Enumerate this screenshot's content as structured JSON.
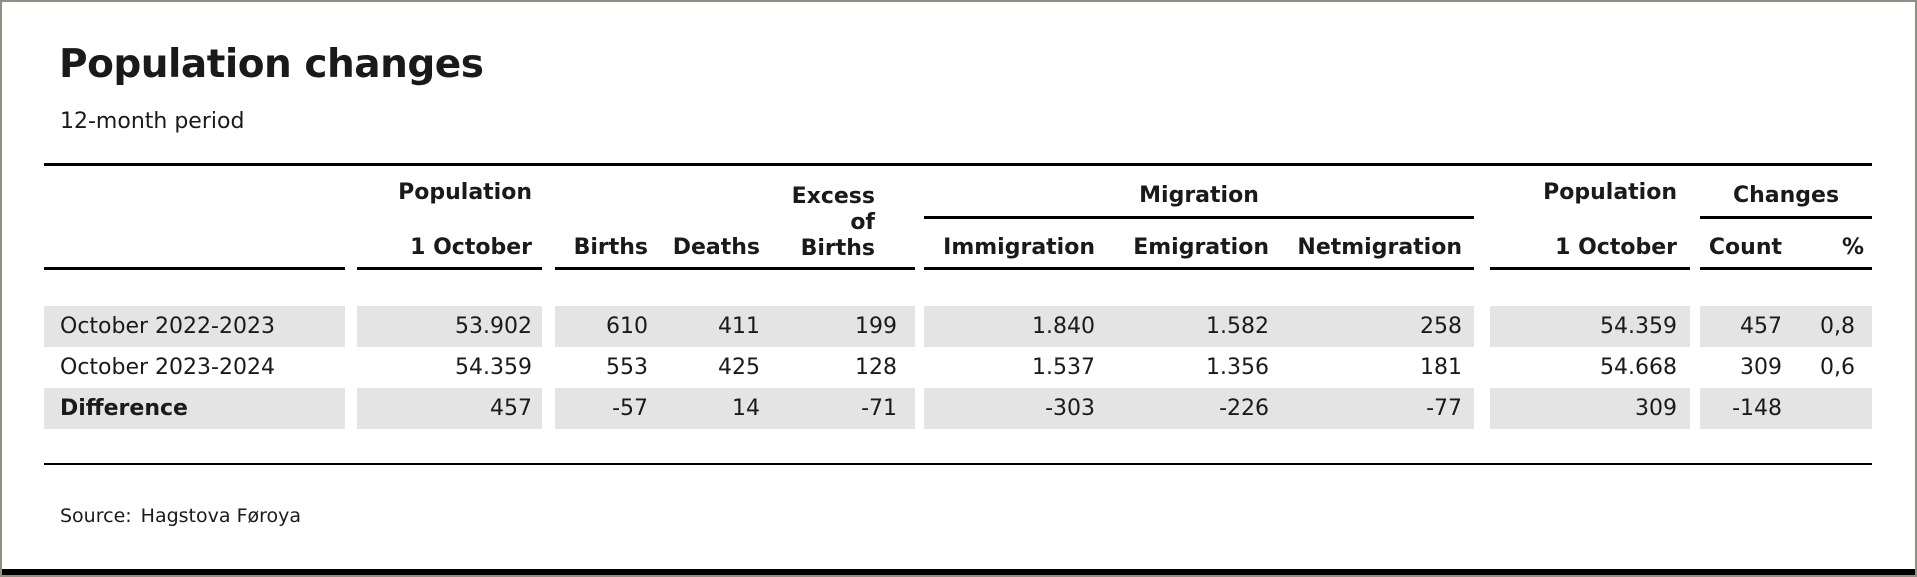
{
  "header": {
    "title": "Population changes",
    "subtitle": "12-month period"
  },
  "footer": {
    "source_label": "Source:",
    "source_value": "Hagstova Føroya"
  },
  "colors": {
    "stripe": "#e4e4e4",
    "text": "#1a1a1a",
    "rule": "#000000",
    "frame_border": "#8f8f84",
    "bottom_bar": "#000000"
  },
  "chart_data": {
    "type": "table",
    "title": "Population changes",
    "subtitle": "12-month period",
    "source": "Hagstova Føroya",
    "group_headers": {
      "migration": "Migration",
      "changes": "Changes"
    },
    "columns": {
      "population_start_line1": "Population",
      "population_start_line2": "1 October",
      "births": "Births",
      "deaths": "Deaths",
      "excess_line1": "Excess of",
      "excess_line2": "Births",
      "immigration": "Immigration",
      "emigration": "Emigration",
      "netmigration": "Netmigration",
      "population_end_line1": "Population",
      "population_end_line2": "1 October",
      "count": "Count",
      "percent": "%"
    },
    "rows": [
      {
        "label": "October 2022-2023",
        "population_start": "53.902",
        "births": "610",
        "deaths": "411",
        "excess_of_births": "199",
        "immigration": "1.840",
        "emigration": "1.582",
        "netmigration": "258",
        "population_end": "54.359",
        "count": "457",
        "percent": "0,8"
      },
      {
        "label": "October 2023-2024",
        "population_start": "54.359",
        "births": "553",
        "deaths": "425",
        "excess_of_births": "128",
        "immigration": "1.537",
        "emigration": "1.356",
        "netmigration": "181",
        "population_end": "54.668",
        "count": "309",
        "percent": "0,6"
      },
      {
        "label": "Difference",
        "population_start": "457",
        "births": "-57",
        "deaths": "14",
        "excess_of_births": "-71",
        "immigration": "-303",
        "emigration": "-226",
        "netmigration": "-77",
        "population_end": "309",
        "count": "-148",
        "percent": ""
      }
    ]
  }
}
